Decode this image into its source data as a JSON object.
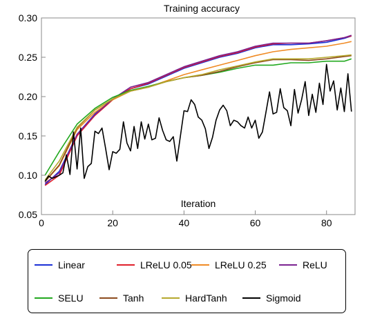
{
  "chart_data": {
    "type": "line",
    "title": "Training accuracy",
    "xlabel": "Iteration",
    "ylabel": "",
    "xlim": [
      0,
      88
    ],
    "ylim": [
      0.05,
      0.3
    ],
    "xticks": [
      "0",
      "20",
      "40",
      "60",
      "80"
    ],
    "yticks": [
      "0.05",
      "0.10",
      "0.15",
      "0.20",
      "0.25",
      "0.30"
    ],
    "grid": false,
    "legend_position": "bottom",
    "series": [
      {
        "name": "Linear",
        "color": "#1a2fd6",
        "x": [
          1,
          5,
          10,
          15,
          20,
          25,
          30,
          35,
          40,
          45,
          50,
          55,
          60,
          65,
          70,
          75,
          80,
          85,
          87
        ],
        "y": [
          0.088,
          0.105,
          0.152,
          0.178,
          0.197,
          0.21,
          0.216,
          0.226,
          0.236,
          0.243,
          0.25,
          0.255,
          0.262,
          0.266,
          0.266,
          0.267,
          0.269,
          0.274,
          0.277
        ]
      },
      {
        "name": "LReLU 0.05",
        "color": "#e01f2b",
        "x": [
          1,
          5,
          10,
          15,
          20,
          25,
          30,
          35,
          40,
          45,
          50,
          55,
          60,
          65,
          70,
          75,
          80,
          85,
          87
        ],
        "y": [
          0.087,
          0.1,
          0.15,
          0.176,
          0.196,
          0.21,
          0.217,
          0.227,
          0.237,
          0.244,
          0.251,
          0.256,
          0.263,
          0.267,
          0.268,
          0.268,
          0.271,
          0.275,
          0.277
        ]
      },
      {
        "name": "LReLU 0.25",
        "color": "#f08a24",
        "x": [
          1,
          5,
          10,
          15,
          20,
          25,
          30,
          35,
          40,
          45,
          50,
          55,
          60,
          65,
          70,
          75,
          80,
          85,
          87
        ],
        "y": [
          0.092,
          0.112,
          0.158,
          0.18,
          0.196,
          0.207,
          0.212,
          0.22,
          0.228,
          0.234,
          0.24,
          0.246,
          0.252,
          0.257,
          0.26,
          0.262,
          0.264,
          0.268,
          0.27
        ]
      },
      {
        "name": "ReLU",
        "color": "#7b2290",
        "x": [
          1,
          5,
          10,
          15,
          20,
          25,
          30,
          35,
          40,
          45,
          50,
          55,
          60,
          65,
          70,
          75,
          80,
          85,
          87
        ],
        "y": [
          0.09,
          0.103,
          0.152,
          0.177,
          0.197,
          0.212,
          0.218,
          0.228,
          0.238,
          0.245,
          0.252,
          0.257,
          0.264,
          0.268,
          0.268,
          0.268,
          0.271,
          0.275,
          0.278
        ]
      },
      {
        "name": "SELU",
        "color": "#21a81e",
        "x": [
          1,
          5,
          10,
          15,
          20,
          25,
          30,
          35,
          40,
          45,
          50,
          55,
          60,
          65,
          70,
          75,
          80,
          85,
          87
        ],
        "y": [
          0.1,
          0.13,
          0.165,
          0.185,
          0.199,
          0.208,
          0.213,
          0.219,
          0.224,
          0.227,
          0.231,
          0.236,
          0.24,
          0.24,
          0.243,
          0.243,
          0.245,
          0.245,
          0.248
        ]
      },
      {
        "name": "Tanh",
        "color": "#8c4a1c",
        "x": [
          1,
          5,
          10,
          15,
          20,
          25,
          30,
          35,
          40,
          45,
          50,
          55,
          60,
          65,
          70,
          75,
          80,
          85,
          87
        ],
        "y": [
          0.092,
          0.113,
          0.16,
          0.183,
          0.197,
          0.207,
          0.212,
          0.219,
          0.224,
          0.227,
          0.232,
          0.238,
          0.243,
          0.247,
          0.247,
          0.246,
          0.248,
          0.251,
          0.252
        ]
      },
      {
        "name": "HardTanh",
        "color": "#b5a82c",
        "x": [
          1,
          5,
          10,
          15,
          20,
          25,
          30,
          35,
          40,
          45,
          50,
          55,
          60,
          65,
          70,
          75,
          80,
          85,
          87
        ],
        "y": [
          0.094,
          0.118,
          0.161,
          0.183,
          0.197,
          0.207,
          0.212,
          0.219,
          0.224,
          0.228,
          0.234,
          0.239,
          0.244,
          0.248,
          0.248,
          0.248,
          0.25,
          0.252,
          0.253
        ]
      },
      {
        "name": "Sigmoid",
        "color": "#000000",
        "x": [
          1,
          2,
          3,
          4,
          5,
          6,
          7,
          8,
          9,
          10,
          11,
          12,
          13,
          14,
          15,
          16,
          17,
          18,
          19,
          20,
          21,
          22,
          23,
          24,
          25,
          26,
          27,
          28,
          29,
          30,
          31,
          32,
          33,
          34,
          35,
          36,
          37,
          38,
          39,
          40,
          41,
          42,
          43,
          44,
          45,
          46,
          47,
          48,
          49,
          50,
          51,
          52,
          53,
          54,
          55,
          56,
          57,
          58,
          59,
          60,
          61,
          62,
          63,
          64,
          65,
          66,
          67,
          68,
          69,
          70,
          71,
          72,
          73,
          74,
          75,
          76,
          77,
          78,
          79,
          80,
          81,
          82,
          83,
          84,
          85,
          86,
          87
        ],
        "y": [
          0.092,
          0.099,
          0.096,
          0.098,
          0.1,
          0.103,
          0.126,
          0.101,
          0.155,
          0.108,
          0.16,
          0.096,
          0.111,
          0.115,
          0.156,
          0.153,
          0.16,
          0.134,
          0.107,
          0.13,
          0.128,
          0.133,
          0.168,
          0.141,
          0.131,
          0.162,
          0.134,
          0.168,
          0.146,
          0.165,
          0.145,
          0.147,
          0.173,
          0.157,
          0.145,
          0.143,
          0.149,
          0.118,
          0.15,
          0.182,
          0.181,
          0.196,
          0.19,
          0.174,
          0.17,
          0.159,
          0.134,
          0.148,
          0.17,
          0.183,
          0.189,
          0.182,
          0.163,
          0.17,
          0.168,
          0.163,
          0.16,
          0.174,
          0.16,
          0.17,
          0.147,
          0.155,
          0.18,
          0.206,
          0.178,
          0.18,
          0.21,
          0.186,
          0.182,
          0.163,
          0.209,
          0.179,
          0.196,
          0.219,
          0.176,
          0.203,
          0.18,
          0.217,
          0.19,
          0.241,
          0.207,
          0.22,
          0.183,
          0.211,
          0.181,
          0.229,
          0.181
        ]
      }
    ]
  }
}
